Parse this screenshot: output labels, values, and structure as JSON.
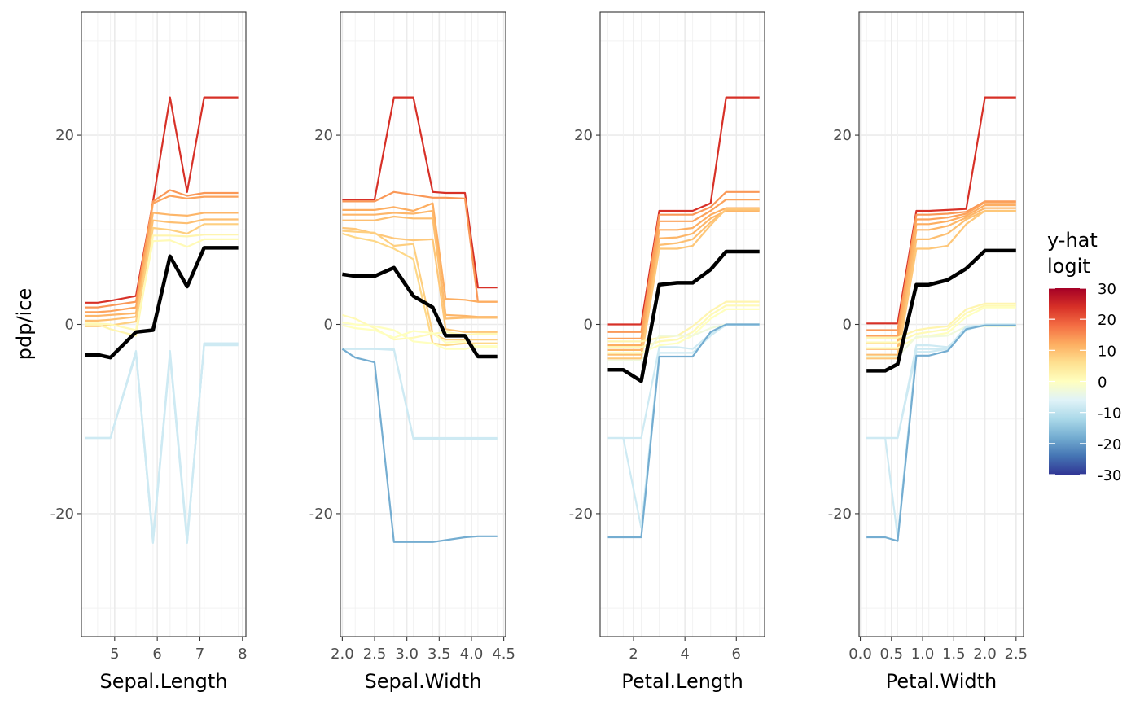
{
  "chart_data": {
    "type": "line",
    "description_free": true,
    "ylabel": "pdp/ice",
    "ylim": [
      -33,
      33
    ],
    "y_major_ticks": [
      -20,
      0,
      20
    ],
    "y_tick_labels": [
      "-20",
      "0",
      "20"
    ],
    "legend": {
      "title_line1": "y-hat",
      "title_line2": "logit",
      "placement": "right",
      "range": [
        -30,
        30
      ],
      "labels": [
        "30",
        "20",
        "10",
        "0",
        "-10",
        "-20",
        "-30"
      ],
      "colors": [
        "#313695",
        "#4575b4",
        "#74add1",
        "#abd9e9",
        "#e0f3f8",
        "#ffffbf",
        "#fee090",
        "#fdae61",
        "#f46d43",
        "#d73027",
        "#a50026"
      ]
    },
    "pdp_color": "#000000",
    "panels": [
      {
        "xlabel": "Sepal.Length",
        "xlim": [
          4.22,
          8.08
        ],
        "x_ticks": [
          5,
          6,
          7,
          8
        ],
        "x_tick_labels": [
          "5",
          "6",
          "7",
          "8"
        ],
        "x": [
          4.3,
          4.6,
          4.9,
          5.5,
          5.9,
          6.3,
          6.7,
          7.1,
          7.5,
          7.9
        ],
        "pdp": [
          -3.2,
          -3.2,
          -3.5,
          -0.8,
          -0.6,
          7.2,
          4.0,
          8.1,
          8.1,
          8.1
        ],
        "series": [
          {
            "yhat": 24,
            "values": [
              2.3,
              2.3,
              2.5,
              3.0,
              13.0,
              24.0,
              14.0,
              24.0,
              24.0,
              24.0
            ]
          },
          {
            "yhat": 14,
            "values": [
              1.8,
              1.8,
              2.0,
              2.4,
              13.0,
              14.2,
              13.6,
              13.9,
              13.9,
              13.9
            ]
          },
          {
            "yhat": 13,
            "values": [
              1.3,
              1.3,
              1.4,
              1.8,
              12.8,
              13.6,
              13.3,
              13.5,
              13.5,
              13.5
            ]
          },
          {
            "yhat": 11,
            "values": [
              0.9,
              0.9,
              1.0,
              1.2,
              11.8,
              11.6,
              11.5,
              11.8,
              11.8,
              11.8
            ]
          },
          {
            "yhat": 10,
            "values": [
              0.4,
              0.4,
              0.5,
              0.8,
              11.0,
              10.8,
              10.7,
              11.1,
              11.1,
              11.1
            ]
          },
          {
            "yhat": 8,
            "values": [
              -0.2,
              -0.2,
              -0.1,
              0.3,
              10.2,
              10.0,
              9.6,
              10.6,
              10.6,
              10.6
            ]
          },
          {
            "yhat": 2,
            "values": [
              0.0,
              0.0,
              -0.5,
              -1.2,
              9.4,
              9.4,
              9.3,
              9.5,
              9.5,
              9.5
            ]
          },
          {
            "yhat": 1,
            "values": [
              0.1,
              0.1,
              0.0,
              -0.6,
              8.8,
              8.9,
              8.2,
              9.0,
              9.0,
              9.0
            ]
          },
          {
            "yhat": -8,
            "values": [
              -12.0,
              -12.0,
              -12.0,
              -3.0,
              -23.0,
              -3.0,
              -23.0,
              -2.0,
              -2.0,
              -2.0
            ]
          },
          {
            "yhat": -8,
            "values": [
              -12.0,
              -12.0,
              -12.0,
              -2.8,
              -22.5,
              -3.2,
              -22.8,
              -2.1,
              -2.1,
              -2.1
            ]
          },
          {
            "yhat": -8,
            "values": [
              -12.0,
              -12.0,
              -12.0,
              -3.1,
              -22.8,
              -2.8,
              -22.5,
              -2.2,
              -2.2,
              -2.2
            ]
          },
          {
            "yhat": -8,
            "values": [
              -12.0,
              -12.0,
              -12.0,
              -2.9,
              -23.1,
              -3.3,
              -23.1,
              -2.0,
              -2.0,
              -2.0
            ]
          }
        ]
      },
      {
        "xlabel": "Sepal.Width",
        "xlim": [
          1.97,
          4.53
        ],
        "x_ticks": [
          2.0,
          2.5,
          3.0,
          3.5,
          4.0,
          4.5
        ],
        "x_tick_labels": [
          "2.0",
          "2.5",
          "3.0",
          "3.5",
          "4.0",
          "4.5"
        ],
        "x": [
          2.0,
          2.2,
          2.5,
          2.8,
          3.1,
          3.4,
          3.6,
          3.9,
          4.1,
          4.4
        ],
        "pdp": [
          5.3,
          5.1,
          5.1,
          6.0,
          3.0,
          1.8,
          -1.2,
          -1.2,
          -3.4,
          -3.4
        ],
        "series": [
          {
            "yhat": 24,
            "values": [
              13.2,
              13.2,
              13.2,
              24.0,
              24.0,
              14.0,
              13.9,
              13.9,
              3.9,
              3.9
            ]
          },
          {
            "yhat": 14,
            "values": [
              13.0,
              13.0,
              13.0,
              14.0,
              13.7,
              13.4,
              13.4,
              13.3,
              2.4,
              2.4
            ]
          },
          {
            "yhat": 12,
            "values": [
              12.1,
              12.1,
              12.1,
              12.4,
              12.0,
              12.8,
              2.7,
              2.6,
              2.4,
              2.4
            ]
          },
          {
            "yhat": 11,
            "values": [
              11.6,
              11.6,
              11.6,
              11.8,
              11.7,
              12.0,
              1.0,
              0.9,
              0.8,
              0.8
            ]
          },
          {
            "yhat": 10,
            "values": [
              11.0,
              11.0,
              11.0,
              11.4,
              11.2,
              11.2,
              0.6,
              0.7,
              0.7,
              0.7
            ]
          },
          {
            "yhat": 9,
            "values": [
              10.2,
              10.1,
              9.6,
              9.1,
              8.9,
              9.0,
              -0.5,
              -0.8,
              -0.8,
              -0.8
            ]
          },
          {
            "yhat": 8,
            "values": [
              9.9,
              9.8,
              9.7,
              8.3,
              8.5,
              -1.0,
              -1.6,
              -1.6,
              -1.6,
              -1.6
            ]
          },
          {
            "yhat": 7,
            "values": [
              9.6,
              9.2,
              8.8,
              8.0,
              6.9,
              -2.0,
              -2.2,
              -2.0,
              -2.0,
              -2.0
            ]
          },
          {
            "yhat": 1,
            "values": [
              1.0,
              0.6,
              -0.4,
              -1.6,
              -1.4,
              -1.0,
              -0.8,
              -1.1,
              -1.0,
              -1.0
            ]
          },
          {
            "yhat": 0,
            "values": [
              -0.1,
              -0.4,
              -0.6,
              -1.4,
              -0.7,
              -0.9,
              -1.9,
              -1.8,
              -2.4,
              -2.4
            ]
          },
          {
            "yhat": 0,
            "values": [
              0.2,
              0.0,
              -0.2,
              -0.6,
              -1.8,
              -2.0,
              -2.6,
              -2.6,
              -2.3,
              -2.3
            ]
          },
          {
            "yhat": -8,
            "values": [
              -2.6,
              -2.6,
              -2.6,
              -2.6,
              -12.0,
              -12.0,
              -12.0,
              -12.0,
              -12.0,
              -12.0
            ]
          },
          {
            "yhat": -8,
            "values": [
              -2.6,
              -2.6,
              -2.6,
              -2.7,
              -12.1,
              -12.1,
              -12.1,
              -12.1,
              -12.1,
              -12.1
            ]
          },
          {
            "yhat": -18,
            "values": [
              -2.6,
              -3.5,
              -4.0,
              -23.0,
              -23.0,
              -23.0,
              -22.8,
              -22.5,
              -22.4,
              -22.4
            ]
          }
        ]
      },
      {
        "xlabel": "Petal.Length",
        "xlim": [
          0.7,
          7.1
        ],
        "x_ticks": [
          2,
          4,
          6
        ],
        "x_tick_labels": [
          "2",
          "4",
          "6"
        ],
        "x": [
          1.0,
          1.6,
          2.3,
          3.0,
          3.7,
          4.3,
          5.0,
          5.6,
          6.3,
          6.9
        ],
        "pdp": [
          -4.8,
          -4.8,
          -6.0,
          4.2,
          4.4,
          4.4,
          5.8,
          7.7,
          7.7,
          7.7
        ],
        "series": [
          {
            "yhat": 24,
            "values": [
              0.0,
              0.0,
              0.0,
              12.0,
              12.0,
              12.0,
              12.8,
              24.0,
              24.0,
              24.0
            ]
          },
          {
            "yhat": 14,
            "values": [
              -0.8,
              -0.8,
              -0.8,
              11.6,
              11.6,
              11.6,
              12.4,
              14.0,
              14.0,
              14.0
            ]
          },
          {
            "yhat": 13,
            "values": [
              -1.5,
              -1.5,
              -1.5,
              10.9,
              10.9,
              10.9,
              12.0,
              13.2,
              13.2,
              13.2
            ]
          },
          {
            "yhat": 12,
            "values": [
              -2.2,
              -2.2,
              -2.2,
              10.0,
              10.0,
              10.2,
              11.6,
              12.3,
              12.3,
              12.3
            ]
          },
          {
            "yhat": 11,
            "values": [
              -2.7,
              -2.7,
              -2.7,
              9.1,
              9.2,
              9.6,
              11.2,
              12.0,
              12.0,
              12.0
            ]
          },
          {
            "yhat": 10,
            "values": [
              -3.2,
              -3.2,
              -3.2,
              8.4,
              8.6,
              9.0,
              10.8,
              12.1,
              12.1,
              12.1
            ]
          },
          {
            "yhat": 9,
            "values": [
              -3.6,
              -3.6,
              -3.6,
              8.0,
              8.0,
              8.3,
              10.5,
              12.2,
              12.2,
              12.2
            ]
          },
          {
            "yhat": 2,
            "values": [
              -1.8,
              -1.8,
              -1.8,
              -1.4,
              -1.2,
              -0.2,
              1.4,
              2.4,
              2.4,
              2.4
            ]
          },
          {
            "yhat": 1,
            "values": [
              -2.4,
              -2.4,
              -2.4,
              -1.8,
              -1.6,
              -0.8,
              1.0,
              2.0,
              2.0,
              2.0
            ]
          },
          {
            "yhat": 0,
            "values": [
              -3.0,
              -3.0,
              -3.0,
              -2.2,
              -2.0,
              -1.2,
              0.6,
              1.6,
              1.6,
              1.6
            ]
          },
          {
            "yhat": -3,
            "values": [
              -3.8,
              -3.8,
              -3.8,
              -1.2,
              -1.2,
              -1.2,
              -0.4,
              0.0,
              0.0,
              0.0
            ]
          },
          {
            "yhat": -8,
            "values": [
              -12.0,
              -12.0,
              -12.0,
              -2.4,
              -2.4,
              -2.6,
              -1.0,
              -0.1,
              -0.1,
              -0.1
            ]
          },
          {
            "yhat": -8,
            "values": [
              -12.0,
              -12.0,
              -21.5,
              -3.0,
              -3.0,
              -3.0,
              -1.2,
              0.0,
              0.0,
              0.0
            ]
          },
          {
            "yhat": -18,
            "values": [
              -22.5,
              -22.5,
              -22.5,
              -3.4,
              -3.4,
              -3.4,
              -0.8,
              0.0,
              0.0,
              0.0
            ]
          }
        ]
      },
      {
        "xlabel": "Petal.Width",
        "xlim": [
          -0.02,
          2.62
        ],
        "x_ticks": [
          0.0,
          0.5,
          1.0,
          1.5,
          2.0,
          2.5
        ],
        "x_tick_labels": [
          "0.0",
          "0.5",
          "1.0",
          "1.5",
          "2.0",
          "2.5"
        ],
        "x": [
          0.1,
          0.4,
          0.6,
          0.9,
          1.1,
          1.4,
          1.7,
          2.0,
          2.2,
          2.5
        ],
        "pdp": [
          -4.9,
          -4.9,
          -4.2,
          4.2,
          4.2,
          4.7,
          5.9,
          7.8,
          7.8,
          7.8
        ],
        "series": [
          {
            "yhat": 24,
            "values": [
              0.1,
              0.1,
              0.1,
              12.0,
              12.0,
              12.1,
              12.2,
              24.0,
              24.0,
              24.0
            ]
          },
          {
            "yhat": 14,
            "values": [
              -0.6,
              -0.6,
              -0.6,
              11.6,
              11.6,
              11.7,
              11.9,
              13.0,
              13.0,
              13.0
            ]
          },
          {
            "yhat": 13,
            "values": [
              -1.2,
              -1.2,
              -1.2,
              11.1,
              11.1,
              11.3,
              11.7,
              12.9,
              12.9,
              12.9
            ]
          },
          {
            "yhat": 12,
            "values": [
              -2.0,
              -2.0,
              -2.0,
              10.6,
              10.6,
              10.9,
              11.5,
              12.6,
              12.6,
              12.6
            ]
          },
          {
            "yhat": 11,
            "values": [
              -2.6,
              -2.6,
              -2.6,
              10.0,
              10.0,
              10.4,
              11.3,
              12.3,
              12.3,
              12.3
            ]
          },
          {
            "yhat": 10,
            "values": [
              -3.2,
              -3.2,
              -3.2,
              9.0,
              9.0,
              9.6,
              11.1,
              12.0,
              12.0,
              12.0
            ]
          },
          {
            "yhat": 9,
            "values": [
              -3.6,
              -3.6,
              -3.6,
              8.0,
              8.0,
              8.3,
              10.6,
              12.0,
              12.0,
              12.0
            ]
          },
          {
            "yhat": 2,
            "values": [
              -1.4,
              -1.4,
              -1.4,
              -0.6,
              -0.4,
              -0.2,
              1.6,
              2.2,
              2.2,
              2.2
            ]
          },
          {
            "yhat": 1,
            "values": [
              -1.9,
              -1.9,
              -1.9,
              -1.0,
              -0.8,
              -0.5,
              1.2,
              2.0,
              2.0,
              2.0
            ]
          },
          {
            "yhat": 0,
            "values": [
              -2.5,
              -2.5,
              -2.5,
              -1.4,
              -1.2,
              -0.9,
              0.8,
              1.8,
              1.8,
              1.8
            ]
          },
          {
            "yhat": -3,
            "values": [
              -3.4,
              -3.4,
              -3.4,
              -1.3,
              -1.3,
              -1.2,
              -0.2,
              -0.2,
              -0.2,
              -0.2
            ]
          },
          {
            "yhat": -8,
            "values": [
              -12.0,
              -12.0,
              -12.0,
              -2.2,
              -2.2,
              -2.4,
              -0.6,
              0.0,
              0.0,
              0.0
            ]
          },
          {
            "yhat": -8,
            "values": [
              -12.0,
              -12.0,
              -22.5,
              -2.6,
              -2.6,
              -2.6,
              -0.4,
              0.0,
              0.0,
              0.0
            ]
          },
          {
            "yhat": -8,
            "values": [
              -12.0,
              -12.0,
              -12.0,
              -2.9,
              -2.9,
              -2.6,
              -0.2,
              -0.1,
              -0.1,
              -0.1
            ]
          },
          {
            "yhat": -18,
            "values": [
              -22.5,
              -22.5,
              -22.9,
              -3.3,
              -3.3,
              -2.8,
              -0.5,
              -0.1,
              -0.1,
              -0.1
            ]
          }
        ]
      }
    ]
  }
}
